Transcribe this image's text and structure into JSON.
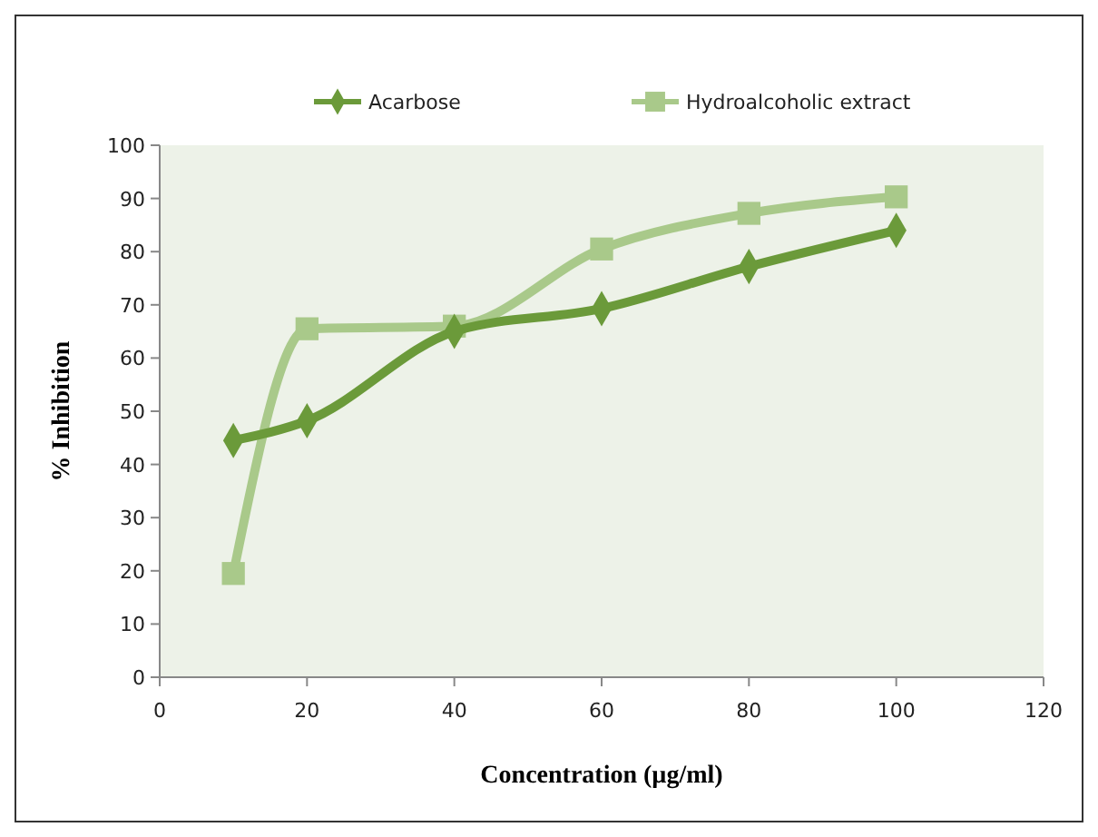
{
  "chart_data": {
    "type": "line",
    "xlabel": "Concentration (µg/ml)",
    "ylabel": "% Inhibition",
    "x": [
      10,
      20,
      40,
      60,
      80,
      100
    ],
    "series": [
      {
        "name": "Acarbose",
        "color": "#6b9a3a",
        "marker": "diamond",
        "values": [
          44.5,
          48.2,
          65,
          69.3,
          77.2,
          84
        ]
      },
      {
        "name": "Hydroalcoholic extract",
        "color": "#a9c98a",
        "marker": "square",
        "values": [
          19.5,
          65.5,
          66,
          80.5,
          87.2,
          90.3
        ]
      }
    ],
    "xlim": [
      0,
      120
    ],
    "xticks": [
      0,
      20,
      40,
      60,
      80,
      100,
      120
    ],
    "ylim": [
      0,
      100
    ],
    "yticks": [
      0,
      10,
      20,
      30,
      40,
      50,
      60,
      70,
      80,
      90,
      100
    ],
    "grid": false,
    "legend": "top"
  }
}
